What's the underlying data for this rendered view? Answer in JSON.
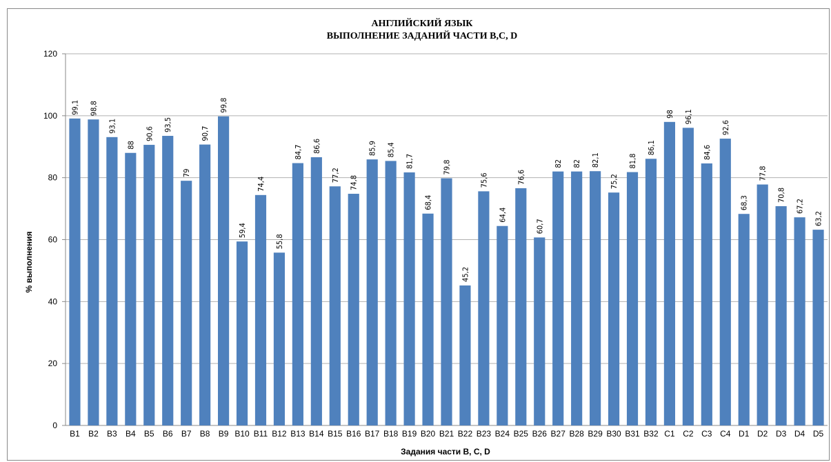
{
  "chart_data": {
    "type": "bar",
    "title": "АНГЛИЙСКИЙ ЯЗЫК",
    "subtitle": "ВЫПОЛНЕНИЕ ЗАДАНИЙ ЧАСТИ B,C, D",
    "x_label": "Задания части B, C, D",
    "y_label": "% выполнения",
    "categories": [
      "B1",
      "B2",
      "B3",
      "B4",
      "B5",
      "B6",
      "B7",
      "B8",
      "B9",
      "B10",
      "B11",
      "B12",
      "B13",
      "B14",
      "B15",
      "B16",
      "B17",
      "B18",
      "B19",
      "B20",
      "B21",
      "B22",
      "B23",
      "B24",
      "B25",
      "B26",
      "B27",
      "B28",
      "B29",
      "B30",
      "B31",
      "B32",
      "C1",
      "C2",
      "C3",
      "C4",
      "D1",
      "D2",
      "D3",
      "D4",
      "D5"
    ],
    "values": [
      99.1,
      98.8,
      93.1,
      88,
      90.6,
      93.5,
      79,
      90.7,
      99.8,
      59.4,
      74.4,
      55.8,
      84.7,
      86.6,
      77.2,
      74.8,
      85.9,
      85.4,
      81.7,
      68.4,
      79.8,
      45.2,
      75.6,
      64.4,
      76.6,
      60.7,
      82,
      82,
      82.1,
      75.2,
      81.8,
      86.1,
      98,
      96.1,
      84.6,
      92.6,
      68.3,
      77.8,
      70.8,
      67.2,
      63.2
    ],
    "value_labels": [
      "99,1",
      "98,8",
      "93,1",
      "88",
      "90,6",
      "93,5",
      "79",
      "90,7",
      "99,8",
      "59,4",
      "74,4",
      "55,8",
      "84,7",
      "86,6",
      "77,2",
      "74,8",
      "85,9",
      "85,4",
      "81,7",
      "68,4",
      "79,8",
      "45,2",
      "75,6",
      "64,4",
      "76,6",
      "60,7",
      "82",
      "82",
      "82,1",
      "75,2",
      "81,8",
      "86,1",
      "98",
      "96,1",
      "84,6",
      "92,6",
      "68,3",
      "77,8",
      "70,8",
      "67,2",
      "63,2"
    ],
    "color": "#4f81bd",
    "ylim": [
      0,
      120
    ],
    "yticks": [
      0,
      20,
      40,
      60,
      80,
      100,
      120
    ],
    "grid": true
  }
}
